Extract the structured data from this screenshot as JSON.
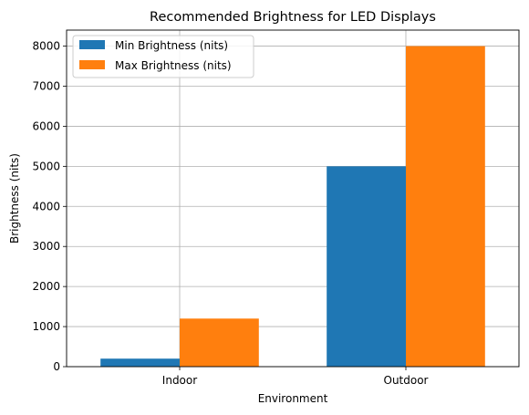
{
  "chart_data": {
    "type": "bar",
    "title": "Recommended Brightness for LED Displays",
    "xlabel": "Environment",
    "ylabel": "Brightness (nits)",
    "categories": [
      "Indoor",
      "Outdoor"
    ],
    "series": [
      {
        "name": "Min Brightness (nits)",
        "values": [
          200,
          5000
        ],
        "color": "#1f77b4"
      },
      {
        "name": "Max Brightness (nits)",
        "values": [
          1200,
          8000
        ],
        "color": "#ff7f0e"
      }
    ],
    "ylim": [
      0,
      8400
    ],
    "yticks": [
      0,
      1000,
      2000,
      3000,
      4000,
      5000,
      6000,
      7000,
      8000
    ],
    "grid": true,
    "legend": "top-left"
  }
}
